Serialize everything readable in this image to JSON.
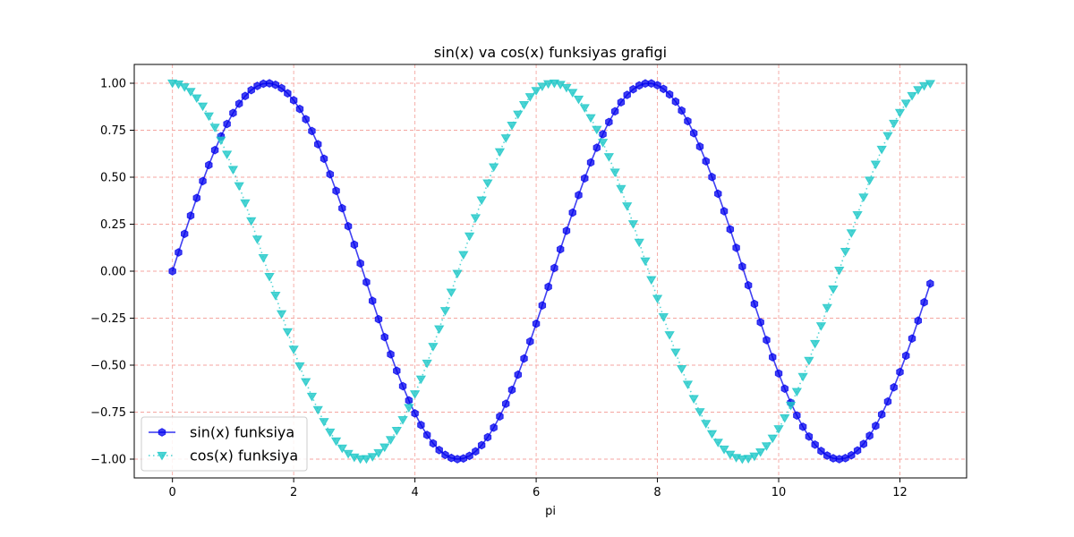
{
  "chart_data": {
    "type": "line",
    "title": "sin(x) va cos(x) funksiyas grafigi",
    "xlabel": "pi",
    "ylabel": "",
    "xlim": [
      -0.63,
      13.1
    ],
    "ylim": [
      -1.1,
      1.1
    ],
    "x_ticks": [
      0,
      2,
      4,
      6,
      8,
      10,
      12
    ],
    "x_tick_labels": [
      "0",
      "2",
      "4",
      "6",
      "8",
      "10",
      "12"
    ],
    "y_ticks": [
      1.0,
      0.75,
      0.5,
      0.25,
      0.0,
      -0.25,
      -0.5,
      -0.75,
      -1.0
    ],
    "y_tick_labels": [
      "1.00",
      "0.75",
      "0.50",
      "0.25",
      "0.00",
      "−0.25",
      "−0.50",
      "−0.75",
      "−1.00"
    ],
    "grid": true,
    "grid_color": "#f4a6a0",
    "legend_position": "lower-left",
    "x_sampling": {
      "start": 0,
      "step": 0.1,
      "count": 126
    },
    "series": [
      {
        "name": "sin(x) funksiya",
        "function": "sin",
        "color": "#0000ee",
        "line_style": "solid",
        "marker": "hexagon"
      },
      {
        "name": "cos(x) funksiya",
        "function": "cos",
        "color": "#1fc8c8",
        "line_style": "dotted",
        "marker": "triangle-down"
      }
    ]
  }
}
